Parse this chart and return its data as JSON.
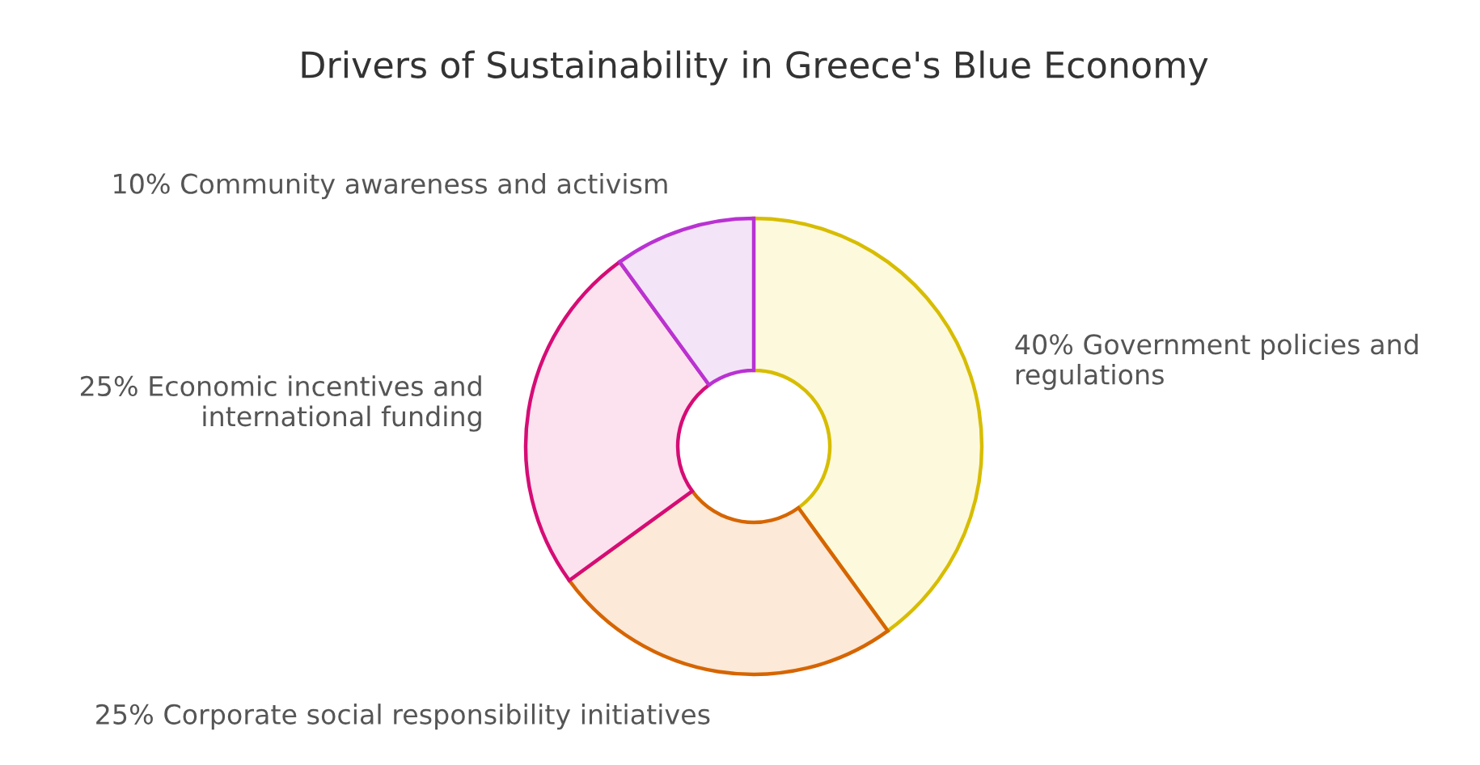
{
  "chart_data": {
    "type": "donut",
    "title": "Drivers of Sustainability in Greece's Blue Economy",
    "categories": [
      "Government policies and regulations",
      "Corporate social responsibility initiatives",
      "Economic incentives and international funding",
      "Community awareness and activism"
    ],
    "values": [
      40,
      25,
      25,
      10
    ],
    "value_labels": [
      "40%",
      "25%",
      "25%",
      "10%"
    ],
    "colors": [
      "#fdf9dc",
      "#fce9d8",
      "#fce1ef",
      "#f4e4f7"
    ]
  }
}
